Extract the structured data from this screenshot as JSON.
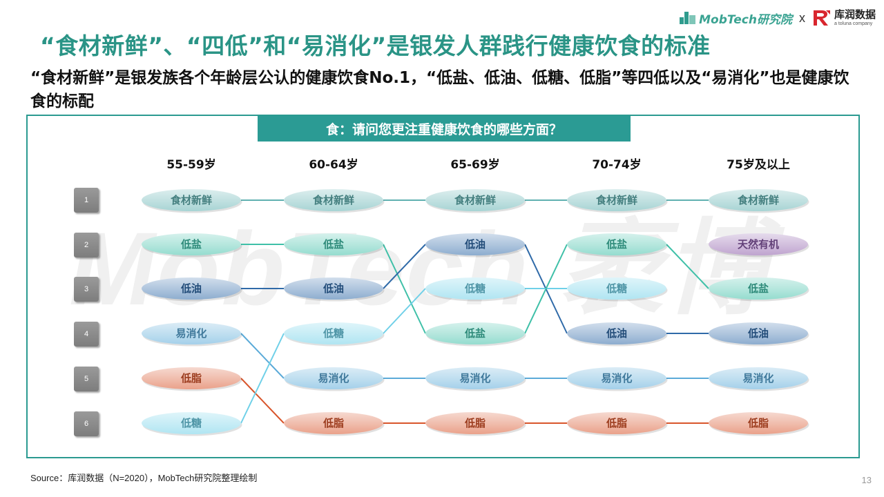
{
  "brand": {
    "mobtech": "MobTech研究院",
    "x": "x",
    "kurun": "库润数据",
    "kurun_sub": "a toluna company"
  },
  "title": "“食材新鲜”、“四低”和“易消化”是银发人群践行健康饮食的标准",
  "subtitle": "“食材新鲜”是银发族各个年龄层公认的健康饮食No.1，“低盐、低油、低糖、低脂”等四低以及“易消化”也是健康饮食的标配",
  "watermark": "MobTech 袤博",
  "chart_data": {
    "type": "table",
    "title": "食：请问您更注重健康饮食的哪些方面？",
    "ranks": [
      "1",
      "2",
      "3",
      "4",
      "5",
      "6"
    ],
    "columns": [
      "55-59岁",
      "60-64岁",
      "65-69岁",
      "70-74岁",
      "75岁及以上"
    ],
    "rankings": [
      [
        "食材新鲜",
        "低盐",
        "低油",
        "易消化",
        "低脂",
        "低糖"
      ],
      [
        "食材新鲜",
        "低盐",
        "低油",
        "低糖",
        "易消化",
        "低脂"
      ],
      [
        "食材新鲜",
        "低油",
        "低糖",
        "低盐",
        "易消化",
        "低脂"
      ],
      [
        "食材新鲜",
        "低盐",
        "低糖",
        "低油",
        "易消化",
        "低脂"
      ],
      [
        "食材新鲜",
        "天然有机",
        "低盐",
        "低油",
        "易消化",
        "低脂"
      ]
    ],
    "item_colors": {
      "食材新鲜": "#5fb0b0",
      "低盐": "#3fc0a8",
      "低油": "#2f6aa8",
      "易消化": "#5aaad8",
      "低脂": "#d8542a",
      "低糖": "#6fd0e8",
      "天然有机": "#8a5aa8"
    }
  },
  "source": "Source：库润数据（N=2020），MobTech研究院整理绘制",
  "page_number": "13"
}
